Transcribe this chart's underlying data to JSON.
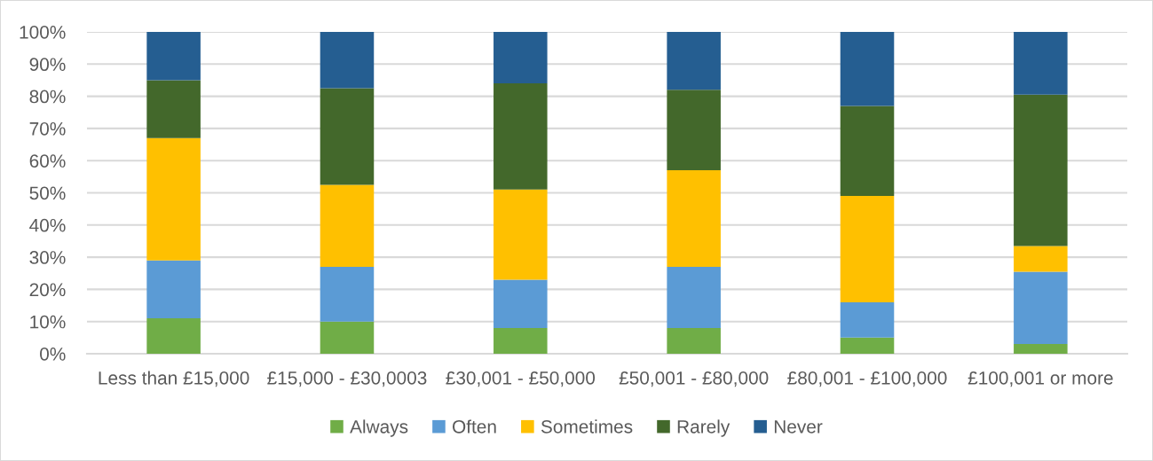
{
  "chart_data": {
    "type": "bar",
    "stacked": true,
    "categories": [
      "Less than £15,000",
      "£15,000 - £30,0003",
      "£30,001 - £50,000",
      "£50,001 - £80,000",
      "£80,001 - £100,000",
      "£100,001 or more"
    ],
    "series": [
      {
        "name": "Always",
        "color": "#70ad47",
        "values": [
          11,
          10,
          8,
          8,
          5,
          3
        ]
      },
      {
        "name": "Often",
        "color": "#5b9bd5",
        "values": [
          18,
          17,
          15,
          19,
          11,
          22.5
        ]
      },
      {
        "name": "Sometimes",
        "color": "#ffc000",
        "values": [
          38,
          25.5,
          28,
          30,
          33,
          8
        ]
      },
      {
        "name": "Rarely",
        "color": "#43682b",
        "values": [
          18,
          30,
          33,
          25,
          28,
          47
        ]
      },
      {
        "name": "Never",
        "color": "#255e91",
        "values": [
          15,
          17.5,
          16,
          18,
          23,
          19.5
        ]
      }
    ],
    "ylim": [
      0,
      100
    ],
    "yticks": [
      {
        "value": 0,
        "label": "0%"
      },
      {
        "value": 10,
        "label": "10%"
      },
      {
        "value": 20,
        "label": "20%"
      },
      {
        "value": 30,
        "label": "30%"
      },
      {
        "value": 40,
        "label": "40%"
      },
      {
        "value": 50,
        "label": "50%"
      },
      {
        "value": 60,
        "label": "60%"
      },
      {
        "value": 70,
        "label": "70%"
      },
      {
        "value": 80,
        "label": "80%"
      },
      {
        "value": 90,
        "label": "90%"
      },
      {
        "value": 100,
        "label": "100%"
      }
    ],
    "grid": "y",
    "legend": "bottom"
  }
}
